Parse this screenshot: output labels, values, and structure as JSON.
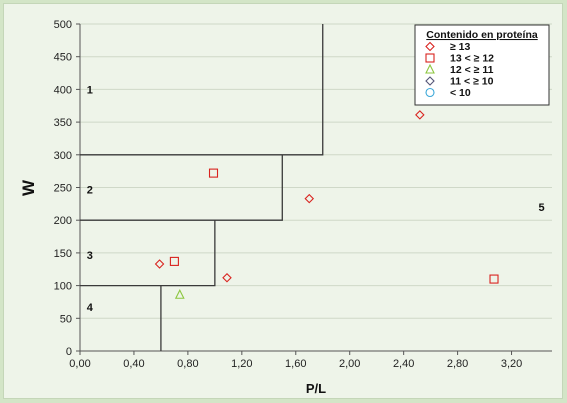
{
  "chart_data": {
    "type": "scatter",
    "xlabel": "P/L",
    "ylabel": "W",
    "xlim": [
      0,
      3.5
    ],
    "ylim": [
      0,
      500
    ],
    "x_ticks": [
      "0,00",
      "0,40",
      "0,80",
      "1,20",
      "1,60",
      "2,00",
      "2,40",
      "2,80",
      "3,20"
    ],
    "x_tick_values": [
      0,
      0.4,
      0.8,
      1.2,
      1.6,
      2.0,
      2.4,
      2.8,
      3.2
    ],
    "y_ticks": [
      "0",
      "50",
      "100",
      "150",
      "200",
      "250",
      "300",
      "350",
      "400",
      "450",
      "500"
    ],
    "y_tick_values": [
      0,
      50,
      100,
      150,
      200,
      250,
      300,
      350,
      400,
      450,
      500
    ],
    "grid": "horizontal",
    "legend": {
      "title": "Contenido en proteína",
      "placement": "top-right",
      "entries": [
        {
          "symbol": "◇",
          "label": "≥ 13",
          "color": "#d9231f",
          "marker": "diamond"
        },
        {
          "symbol": "□",
          "label": "13 <  ≥ 12",
          "color": "#d9231f",
          "marker": "square"
        },
        {
          "symbol": "△",
          "label": "12 <  ≥ 11",
          "color": "#8cc63f",
          "marker": "triangle"
        },
        {
          "symbol": "◇",
          "label": "11 <  ≥ 10",
          "color": "#555577",
          "marker": "diamond"
        },
        {
          "symbol": "○",
          "label": "< 10",
          "color": "#3aa7d8",
          "marker": "circle"
        }
      ]
    },
    "series": [
      {
        "name": "≥ 13",
        "marker": "diamond",
        "color": "#d9231f",
        "points": [
          [
            0.59,
            133
          ],
          [
            1.09,
            112
          ],
          [
            1.7,
            233
          ],
          [
            2.52,
            361
          ]
        ]
      },
      {
        "name": "13 <  ≥ 12",
        "marker": "square",
        "color": "#d9231f",
        "points": [
          [
            0.99,
            272
          ],
          [
            0.7,
            137
          ],
          [
            3.07,
            110
          ]
        ]
      },
      {
        "name": "12 <  ≥ 11",
        "marker": "triangle",
        "color": "#8cc63f",
        "points": [
          [
            0.74,
            86
          ]
        ]
      },
      {
        "name": "11 <  ≥ 10",
        "marker": "diamond",
        "color": "#555577",
        "points": []
      },
      {
        "name": "< 10",
        "marker": "circle",
        "color": "#3aa7d8",
        "points": []
      }
    ],
    "region_boundaries": [
      [
        [
          0,
          300
        ],
        [
          1.8,
          300
        ],
        [
          1.8,
          500
        ]
      ],
      [
        [
          0,
          200
        ],
        [
          1.5,
          200
        ],
        [
          1.5,
          300
        ]
      ],
      [
        [
          0,
          100
        ],
        [
          1.0,
          100
        ],
        [
          1.0,
          200
        ]
      ],
      [
        [
          0.6,
          0
        ],
        [
          0.6,
          100
        ]
      ]
    ],
    "region_labels": [
      {
        "text": "1",
        "x": 0.05,
        "y": 400
      },
      {
        "text": "2",
        "x": 0.05,
        "y": 247
      },
      {
        "text": "3",
        "x": 0.05,
        "y": 147
      },
      {
        "text": "4",
        "x": 0.05,
        "y": 67
      },
      {
        "text": "5",
        "x": 3.4,
        "y": 220
      }
    ]
  }
}
